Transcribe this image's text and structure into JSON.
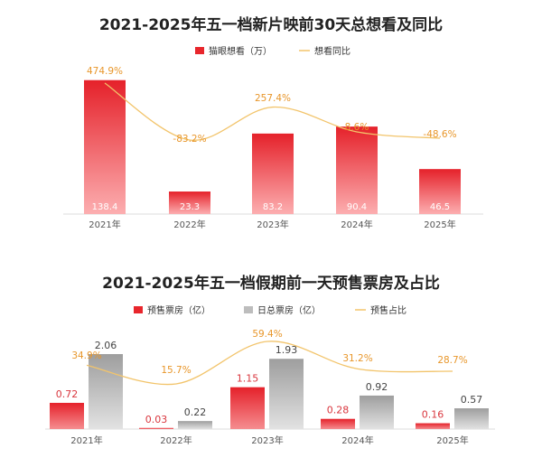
{
  "chart_data": [
    {
      "type": "bar+line",
      "title": "2021-2025年五一档新片映前30天总想看及同比",
      "categories": [
        "2021年",
        "2022年",
        "2023年",
        "2024年",
        "2025年"
      ],
      "series": [
        {
          "name": "猫眼想看（万）",
          "type": "bar",
          "color": "#e8262c",
          "values": [
            138.4,
            23.3,
            83.2,
            90.4,
            46.5
          ],
          "labels": [
            "138.4",
            "23.3",
            "83.2",
            "90.4",
            "46.5"
          ]
        },
        {
          "name": "想看同比",
          "type": "line",
          "color": "#f2c46b",
          "values": [
            474.9,
            -83.2,
            257.4,
            8.6,
            -48.6
          ],
          "labels": [
            "474.9%",
            "-83.2%",
            "257.4%",
            "8.6%",
            "-48.6%"
          ]
        }
      ],
      "ylim": [
        0,
        140
      ],
      "y2lim": [
        -150,
        520
      ]
    },
    {
      "type": "bar+line",
      "title": "2021-2025年五一档假期前一天预售票房及占比",
      "categories": [
        "2021年",
        "2022年",
        "2023年",
        "2024年",
        "2025年"
      ],
      "series": [
        {
          "name": "预售票房（亿）",
          "type": "bar",
          "color": "#e8262c",
          "values": [
            0.72,
            0.03,
            1.15,
            0.28,
            0.16
          ],
          "labels": [
            "0.72",
            "0.03",
            "1.15",
            "0.28",
            "0.16"
          ]
        },
        {
          "name": "日总票房（亿）",
          "type": "bar",
          "color": "#b5b5b5",
          "values": [
            2.06,
            0.22,
            1.93,
            0.92,
            0.57
          ],
          "labels": [
            "2.06",
            "0.22",
            "1.93",
            "0.92",
            "0.57"
          ]
        },
        {
          "name": "预售占比",
          "type": "line",
          "color": "#f2c46b",
          "values": [
            34.9,
            15.7,
            59.4,
            31.2,
            28.7
          ],
          "labels": [
            "34.9%",
            "15.7%",
            "59.4%",
            "31.2%",
            "28.7%"
          ]
        }
      ],
      "ylim": [
        0,
        2.2
      ],
      "y2lim": [
        0,
        70
      ]
    }
  ]
}
